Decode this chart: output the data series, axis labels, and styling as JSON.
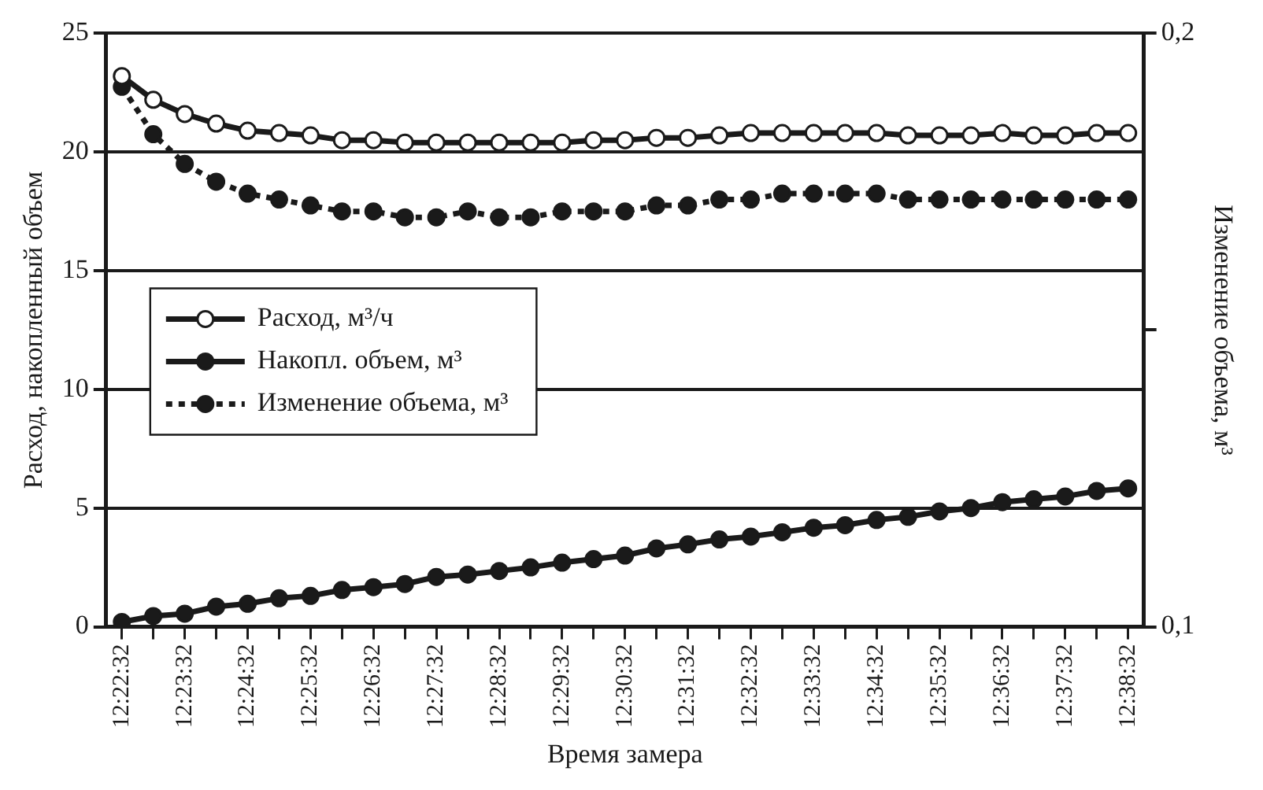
{
  "chart_data": {
    "type": "line",
    "xlabel": "Время замера",
    "ylabel": "Расход, накопленный объем",
    "y2label": "Изменение объема, м³",
    "categories": [
      "12:22:32",
      null,
      "12:23:32",
      null,
      "12:24:32",
      null,
      "12:25:32",
      null,
      "12:26:32",
      null,
      "12:27:32",
      null,
      "12:28:32",
      null,
      "12:29:32",
      null,
      "12:30:32",
      null,
      "12:31:32",
      null,
      "12:32:32",
      null,
      "12:33:32",
      null,
      "12:34:32",
      null,
      "12:35:32",
      null,
      "12:36:32",
      null,
      "12:37:32",
      null,
      "12:38:32"
    ],
    "series": [
      {
        "name": "Расход, м³/ч",
        "color": "#1a1a1a",
        "values": [
          23.2,
          22.2,
          21.6,
          21.2,
          20.9,
          20.8,
          20.7,
          20.5,
          20.5,
          20.4,
          20.4,
          20.4,
          20.4,
          20.4,
          20.4,
          20.5,
          20.5,
          20.6,
          20.6,
          20.7,
          20.8,
          20.8,
          20.8,
          20.8,
          20.8,
          20.7,
          20.7,
          20.7,
          20.8,
          20.7,
          20.7,
          20.8,
          20.8
        ]
      },
      {
        "name": "Накопл. объем, м³",
        "color": "#1a1a1a",
        "values": [
          0.2,
          0.45,
          0.55,
          0.85,
          0.97,
          1.2,
          1.3,
          1.55,
          1.67,
          1.8,
          2.1,
          2.2,
          2.35,
          2.5,
          2.7,
          2.85,
          3.0,
          3.3,
          3.47,
          3.68,
          3.8,
          3.98,
          4.17,
          4.28,
          4.5,
          4.63,
          4.86,
          5.0,
          5.25,
          5.37,
          5.49,
          5.72,
          5.83
        ]
      },
      {
        "name": "Изменение объема, м³",
        "color": "#1a1a1a",
        "axis": "y2",
        "line_style": "dotted",
        "values": [
          0.191,
          0.183,
          0.178,
          0.175,
          0.173,
          0.172,
          0.171,
          0.17,
          0.17,
          0.169,
          0.169,
          0.17,
          0.169,
          0.169,
          0.17,
          0.17,
          0.17,
          0.171,
          0.171,
          0.172,
          0.172,
          0.173,
          0.173,
          0.173,
          0.173,
          0.172,
          0.172,
          0.172,
          0.172,
          0.172,
          0.172,
          0.172,
          0.172
        ]
      }
    ],
    "ylim": [
      0,
      25
    ],
    "yticks": [
      0,
      5,
      10,
      15,
      20,
      25
    ],
    "y2lim": [
      0.1,
      0.2
    ],
    "y2ticks": [
      {
        "value": 0.1,
        "label": "0,1"
      },
      {
        "value": 0.15,
        "label": null
      },
      {
        "value": 0.2,
        "label": "0,2"
      }
    ],
    "grid": "y",
    "legend": "left",
    "marker": "circle",
    "line_style": "solid"
  }
}
